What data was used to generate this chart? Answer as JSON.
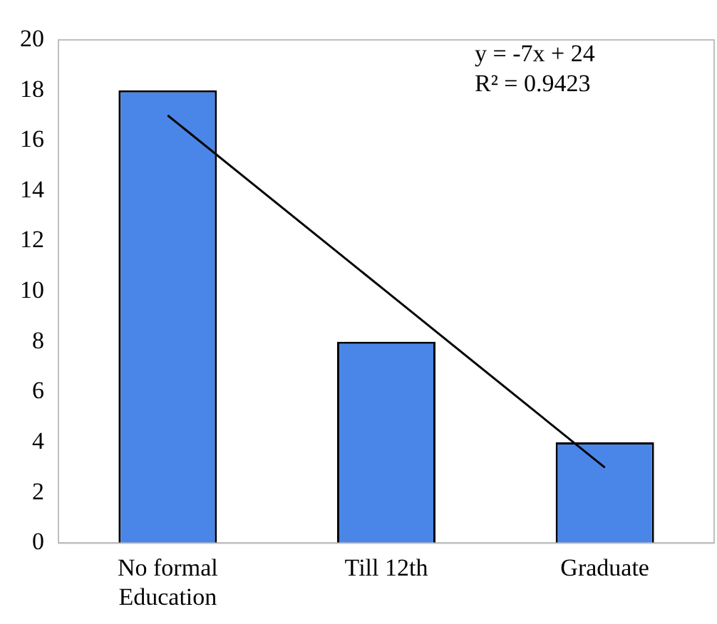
{
  "chart_data": {
    "type": "bar",
    "categories": [
      "No formal Education",
      "Till 12th",
      "Graduate"
    ],
    "series": [
      {
        "color": "#4a86e8",
        "values": [
          18,
          8,
          4
        ]
      },
      {
        "type": "line",
        "color": "#000000",
        "values": [
          17,
          10,
          3
        ]
      }
    ],
    "ylim": [
      0,
      20
    ],
    "yticks": [
      0,
      2,
      4,
      6,
      8,
      10,
      12,
      14,
      16,
      18,
      20
    ],
    "grid": false,
    "legend": false,
    "marker": "none",
    "annotations": [
      "y = -7x + 24",
      "R² = 0.9423"
    ]
  }
}
